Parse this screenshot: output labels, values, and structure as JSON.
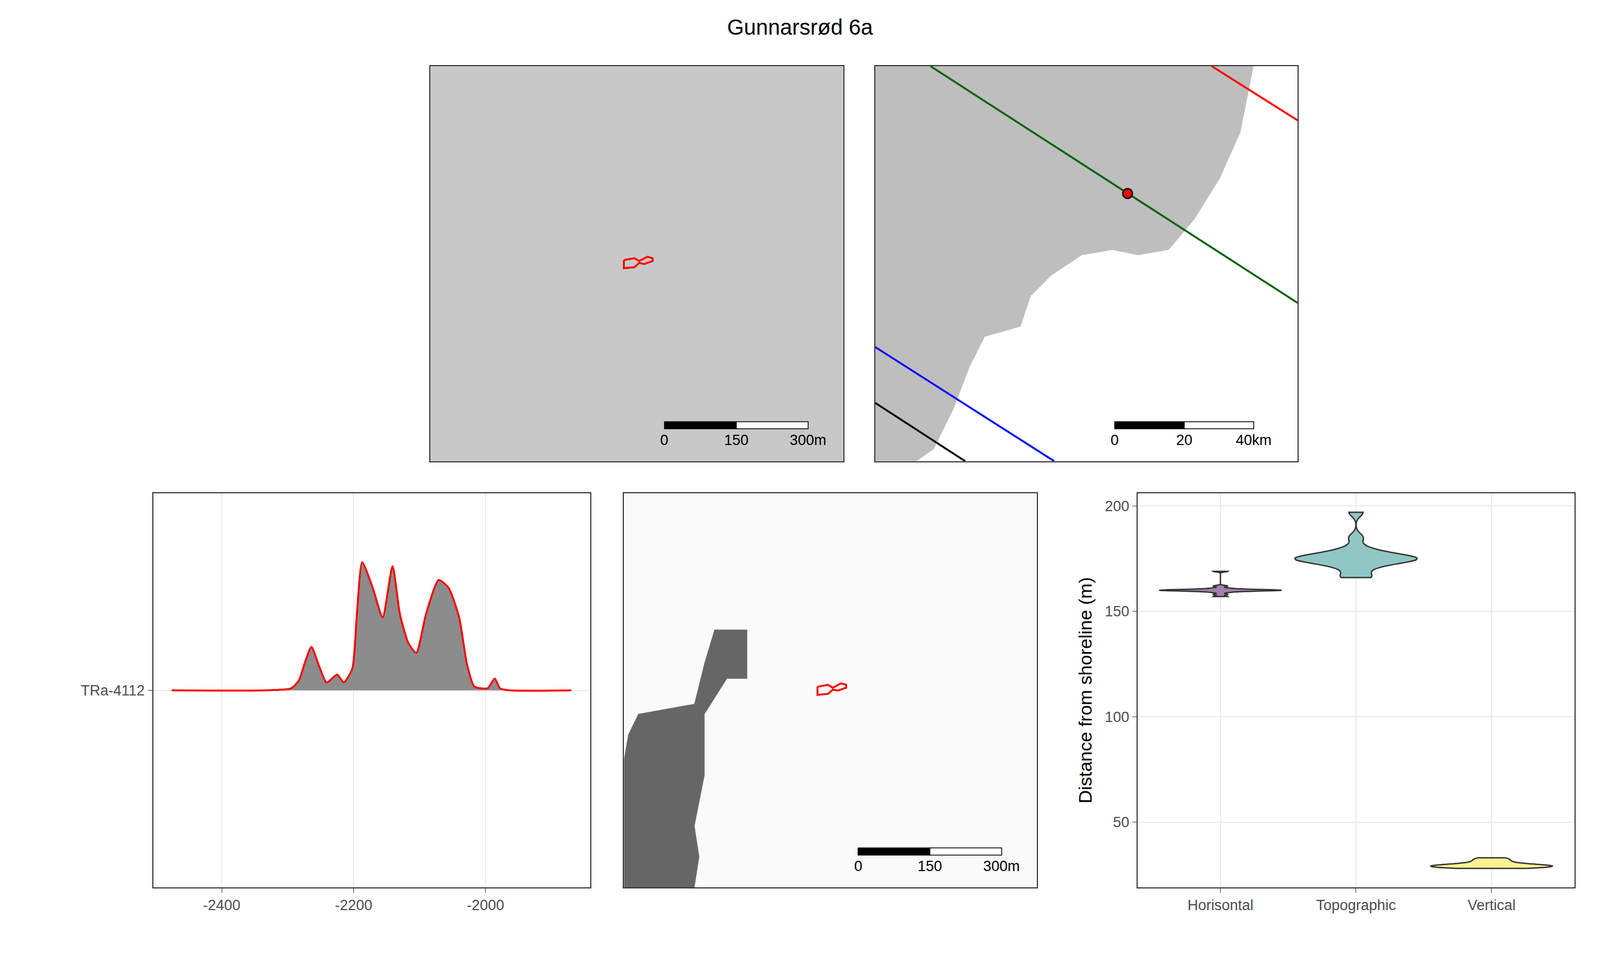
{
  "title": "Gunnarsrød 6a",
  "chart_data": [
    {
      "type": "map",
      "color": "#c8c8c8",
      "xlim": [
        0,
        862
      ],
      "ylim": [
        0,
        823
      ],
      "tick_labels": false,
      "series": [
        {
          "type": "outline",
          "color": "#ff0000",
          "x": [
            404,
            426,
            436,
            453,
            464,
            464,
            447,
            436,
            426,
            404,
            404
          ],
          "y": [
            419,
            423,
            417,
            426,
            423,
            417,
            411,
            413,
            404,
            402,
            419
          ]
        }
      ],
      "scale_bar": [
        0,
        150,
        {
          "value": 300,
          "label": "300m"
        }
      ]
    },
    {
      "type": "map",
      "color": "#ffffff",
      "xlim": [
        0,
        121.5
      ],
      "ylim": [
        0,
        113.8
      ],
      "tick_labels": false,
      "series": [
        {
          "type": "area",
          "color": "#bebebe",
          "x": [
            108.8,
            105,
            99.1,
            91.8,
            84.4,
            75.6,
            68.2,
            59.4,
            50.6,
            44.7,
            41.8,
            31.5,
            27.1,
            22.6,
            16.8,
            11.8,
            0,
            0,
            108.8
          ],
          "y": [
            113.8,
            94.7,
            81.5,
            69.7,
            60.9,
            59.4,
            60.9,
            59.4,
            53.5,
            47.6,
            38.8,
            35.9,
            27.1,
            15.3,
            3.5,
            0,
            0,
            113.8,
            113.8
          ]
        },
        {
          "type": "line",
          "color": "#006400",
          "x": [
            15.9,
            121.5
          ],
          "y": [
            113.8,
            45.6
          ]
        },
        {
          "type": "line",
          "color": "#ff0000",
          "x": [
            96.8,
            121.5
          ],
          "y": [
            113.8,
            98.2
          ]
        },
        {
          "type": "line",
          "color": "#0000ff",
          "x": [
            0,
            51.5
          ],
          "y": [
            32.9,
            0
          ]
        },
        {
          "type": "line",
          "color": "#000000",
          "x": [
            0,
            25.9
          ],
          "y": [
            16.8,
            0
          ]
        },
        {
          "type": "point",
          "marker": "circle",
          "color": "#ff0000",
          "x": [
            72.6
          ],
          "y": [
            77.1
          ]
        }
      ],
      "scale_bar": [
        0,
        20,
        {
          "value": 40,
          "label": "40km"
        }
      ]
    },
    {
      "type": "density",
      "color": "#ff0000",
      "x": [
        -2476,
        -2334,
        -2295,
        -2283,
        -2273,
        -2264,
        -2252,
        -2241,
        -2225,
        -2215,
        -2202,
        -2195,
        -2187,
        -2171,
        -2156,
        -2141,
        -2130,
        -2117,
        -2105,
        -2090,
        -2071,
        -2056,
        -2040,
        -2028,
        -2017,
        -1997,
        -1986,
        -1978,
        -1963,
        -1870
      ],
      "values": [
        0,
        0,
        0.01,
        0.05,
        0.15,
        0.22,
        0.12,
        0.04,
        0.08,
        0.04,
        0.11,
        0.39,
        0.65,
        0.52,
        0.37,
        0.63,
        0.39,
        0.24,
        0.19,
        0.39,
        0.56,
        0.52,
        0.37,
        0.13,
        0.02,
        0.01,
        0.06,
        0.01,
        0,
        0
      ],
      "xlim": [
        -2504,
        -1841
      ],
      "xticks": [
        -2400,
        -2200,
        -2000
      ],
      "ylim": [
        -1,
        1
      ],
      "yticks": [
        {
          "value": 0,
          "label": "TRa-4112"
        }
      ],
      "grid": true
    },
    {
      "type": "map",
      "color": "#fafafa",
      "xlim": [
        0,
        862
      ],
      "ylim": [
        0,
        823
      ],
      "tick_labels": false,
      "series": [
        {
          "type": "area",
          "color": "#666666",
          "x": [
            189,
            257,
            257,
            215,
            168,
            168,
            147,
            157,
            147,
            0,
            0,
            9,
            30,
            147,
            168,
            189
          ],
          "y": [
            538,
            538,
            436,
            436,
            362,
            234,
            128,
            64,
            0,
            0,
            266,
            319,
            362,
            383,
            468,
            538
          ]
        },
        {
          "type": "outline",
          "color": "#ff0000",
          "x": [
            404,
            426,
            436,
            453,
            464,
            464,
            447,
            436,
            426,
            404,
            404
          ],
          "y": [
            419,
            423,
            417,
            426,
            423,
            417,
            411,
            413,
            404,
            402,
            419
          ]
        }
      ],
      "scale_bar": [
        0,
        150,
        {
          "value": 300,
          "label": "300m"
        }
      ]
    },
    {
      "type": "violin",
      "y_label": "Distance from shoreline (m)",
      "categories": [
        "Horisontal",
        "Topographic",
        "Vertical"
      ],
      "colors": [
        "#a180a9",
        "#90c7c5",
        "#fef392"
      ],
      "values": [
        [
          157,
          158,
          159,
          159.5,
          159.7,
          159.8,
          159.9,
          160,
          160,
          160,
          160.1,
          160.2,
          160.3,
          160.5,
          161,
          162,
          169
        ],
        [
          166,
          166.5,
          170,
          172,
          173,
          174,
          174.5,
          175,
          175,
          175,
          175.5,
          176,
          177,
          178,
          180,
          185,
          197
        ],
        [
          28,
          28.5,
          29,
          29,
          29,
          29.2,
          29.5,
          30,
          31,
          32,
          33
        ]
      ],
      "ylim": [
        19,
        206
      ],
      "yticks": [
        50,
        100,
        150,
        200
      ],
      "grid": true
    }
  ]
}
